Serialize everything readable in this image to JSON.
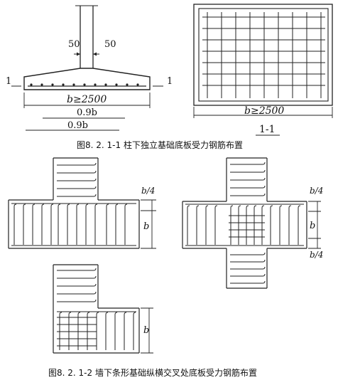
{
  "figure1": {
    "caption": "图8. 2. 1-1 柱下独立基础底板受力钢筋布置",
    "dim_50_left": "50",
    "dim_50_right": "50",
    "section_mark_left": "1",
    "section_mark_right": "1",
    "width_label": "b≥2500",
    "len_09b_short": "0.9b",
    "len_09b_long": "0.9b",
    "plan_width_label": "b≥2500",
    "section_name": "1-1"
  },
  "figure2": {
    "caption": "图8. 2. 1-2 墙下条形基础纵横交叉处底板受力钢筋布置",
    "b": "b",
    "quarter_b": "b/4"
  }
}
